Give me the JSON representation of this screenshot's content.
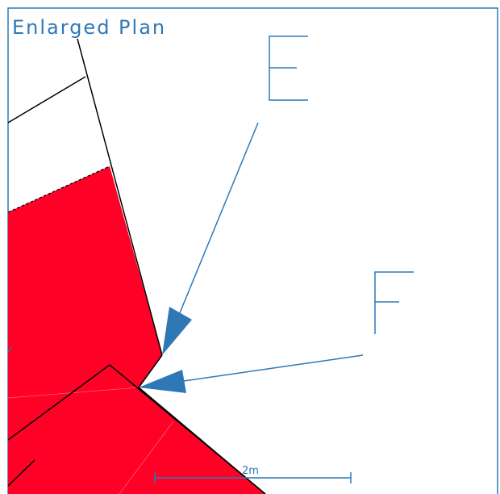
{
  "title": "Enlarged Plan",
  "labels": {
    "e": "E",
    "f": "F"
  },
  "scale_bar": {
    "label": "2m"
  },
  "colors": {
    "frame": "#2e78b6",
    "fill": "#ff0026",
    "outline": "#000000"
  }
}
